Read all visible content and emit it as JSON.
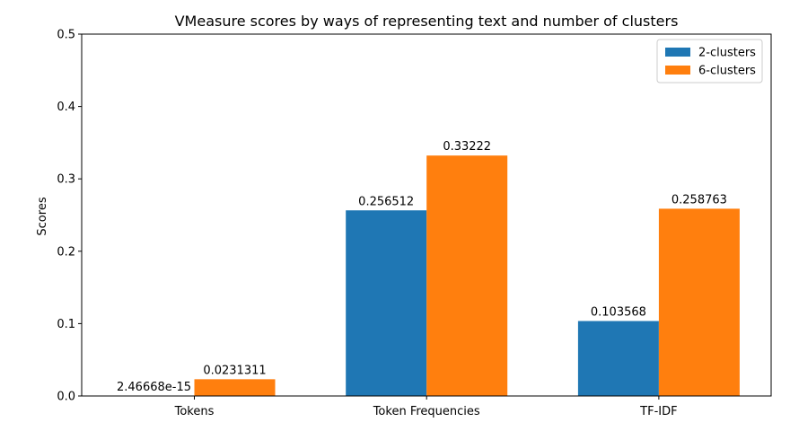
{
  "chart_data": {
    "type": "bar",
    "title": "VMeasure scores by ways of representing text and number of clusters",
    "xlabel": "",
    "ylabel": "Scores",
    "ylim": [
      0,
      0.5
    ],
    "yticks": [
      "0.0",
      "0.1",
      "0.2",
      "0.3",
      "0.4",
      "0.5"
    ],
    "categories": [
      "Tokens",
      "Token Frequencies",
      "TF-IDF"
    ],
    "series": [
      {
        "name": "2-clusters",
        "color": "#1f77b4",
        "values": [
          2.46668e-15,
          0.256512,
          0.103568
        ],
        "labels": [
          "2.46668e-15",
          "0.256512",
          "0.103568"
        ]
      },
      {
        "name": "6-clusters",
        "color": "#ff7f0e",
        "values": [
          0.0231311,
          0.33222,
          0.258763
        ],
        "labels": [
          "0.0231311",
          "0.33222",
          "0.258763"
        ]
      }
    ],
    "legend": "top-right",
    "grid": false
  }
}
